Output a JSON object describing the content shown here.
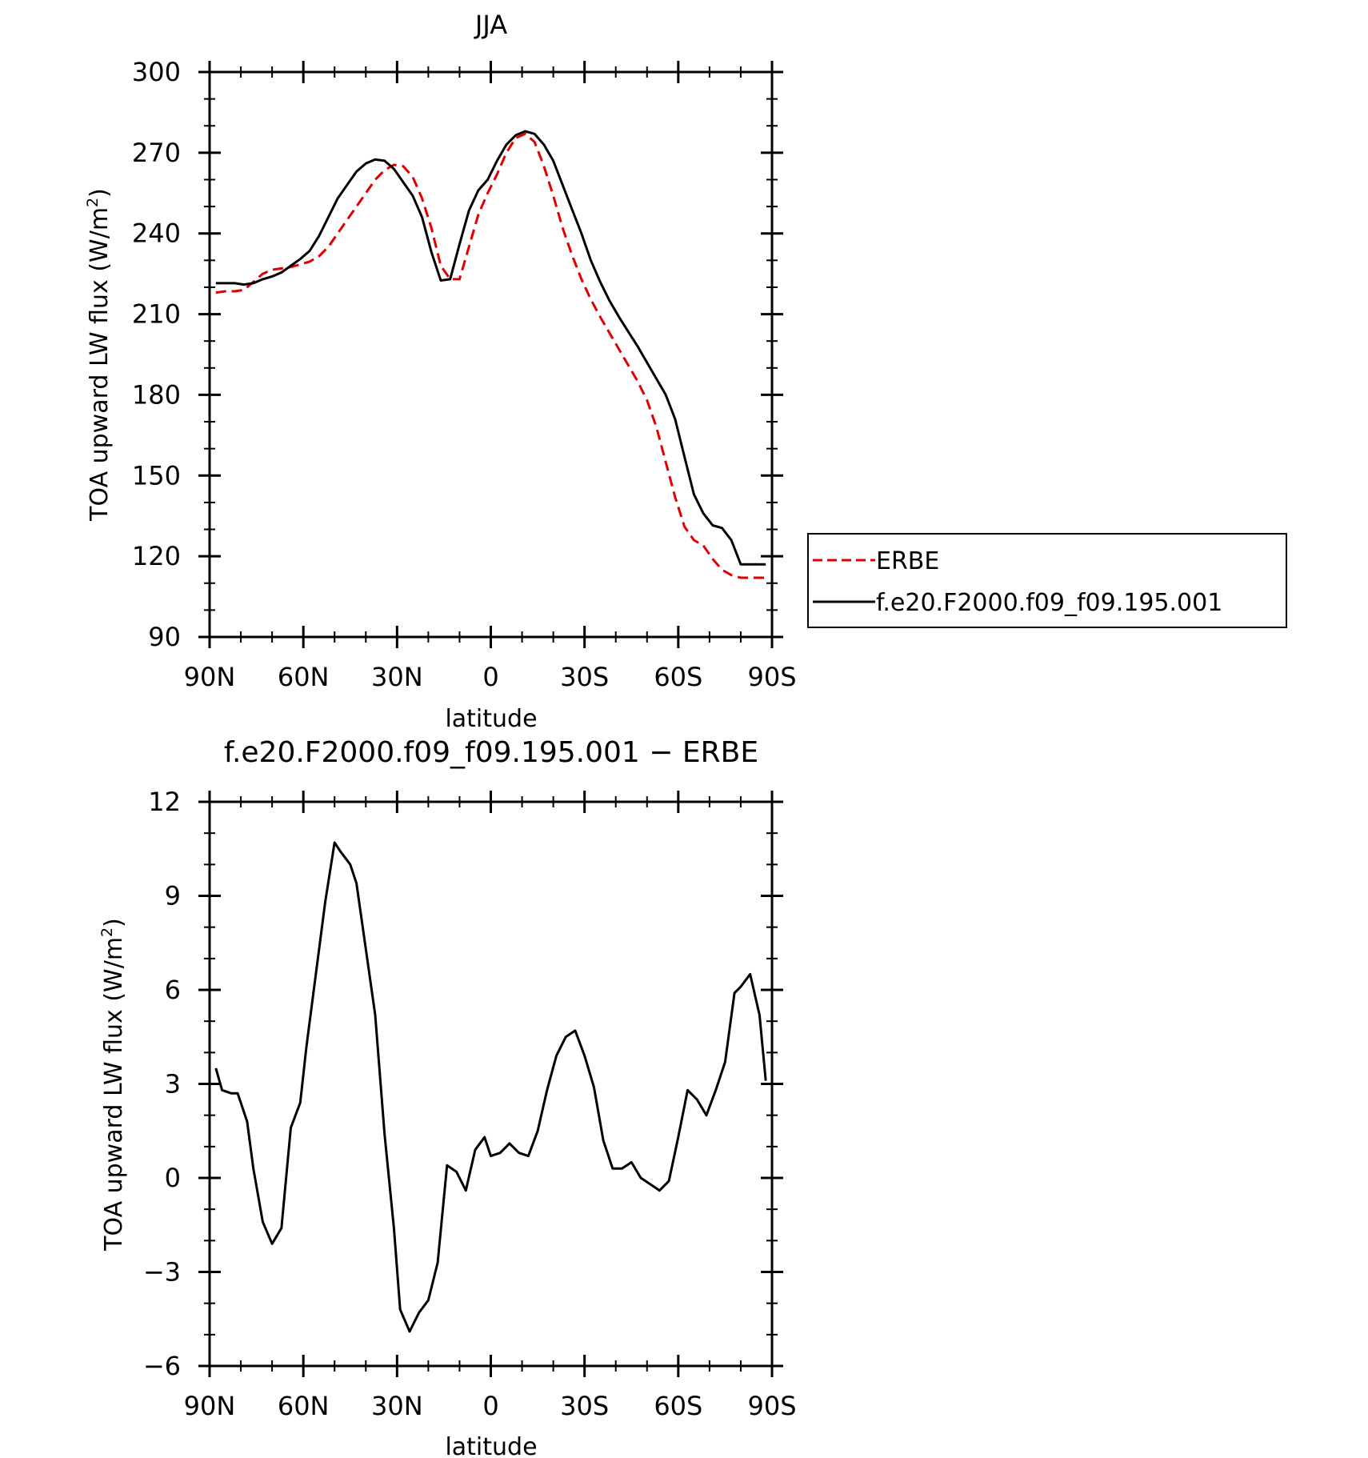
{
  "chart_data": [
    {
      "type": "line",
      "title": "JJA",
      "xlabel": "latitude",
      "ylabel": "TOA upward LW flux (W/m",
      "ylabel_sup": "2",
      "ylabel_close": ")",
      "xlim": [
        90,
        -90
      ],
      "ylim": [
        90,
        300
      ],
      "xticks": [
        90,
        60,
        30,
        0,
        -30,
        -60,
        -90
      ],
      "xtick_labels": [
        "90N",
        "60N",
        "30N",
        "0",
        "30S",
        "60S",
        "90S"
      ],
      "yticks": [
        90,
        120,
        150,
        180,
        210,
        240,
        270,
        300
      ],
      "ytick_labels": [
        "90",
        "120",
        "150",
        "180",
        "210",
        "240",
        "270",
        "300"
      ],
      "grid": false,
      "legend_position": "right",
      "series": [
        {
          "name": "ERBE",
          "color": "#e00000",
          "dash": "dashed",
          "x": [
            88,
            85,
            82,
            79,
            76,
            73,
            70,
            67,
            64,
            61,
            58,
            55,
            52,
            49,
            46,
            43,
            40,
            37,
            34,
            31,
            28,
            25,
            22,
            19,
            16,
            13,
            10,
            7,
            4,
            1,
            -2,
            -5,
            -8,
            -11,
            -14,
            -17,
            -20,
            -23,
            -26,
            -29,
            -32,
            -35,
            -38,
            -41,
            -44,
            -47,
            -50,
            -53,
            -56,
            -59,
            -62,
            -65,
            -68,
            -71,
            -74,
            -77,
            -80,
            -83,
            -86,
            -88
          ],
          "y": [
            218,
            218.5,
            218.5,
            219,
            222,
            225,
            226.5,
            227,
            227.5,
            228.5,
            229.5,
            231.5,
            235,
            240,
            245,
            250,
            255,
            260,
            263.5,
            265.5,
            265,
            261,
            253,
            242,
            228,
            223,
            223,
            235,
            247,
            255,
            262,
            270,
            275.5,
            277,
            274,
            265,
            254,
            242,
            232,
            223,
            215.5,
            209,
            203,
            197,
            191,
            185,
            178,
            168,
            155,
            142,
            131,
            126,
            124,
            119,
            115,
            113,
            112,
            112,
            112,
            112
          ]
        },
        {
          "name": "f.e20.F2000.f09_f09.195.001",
          "color": "#000000",
          "dash": "solid",
          "x": [
            88,
            85,
            82,
            79,
            76,
            73,
            70,
            67,
            64,
            61,
            58,
            55,
            52,
            49,
            46,
            43,
            40,
            37,
            34,
            31,
            28,
            25,
            22,
            19,
            16,
            13,
            10,
            7,
            4,
            1,
            -2,
            -5,
            -8,
            -11,
            -14,
            -17,
            -20,
            -23,
            -26,
            -29,
            -32,
            -35,
            -38,
            -41,
            -44,
            -47,
            -50,
            -53,
            -56,
            -59,
            -62,
            -65,
            -68,
            -71,
            -74,
            -77,
            -80,
            -83,
            -86,
            -88
          ],
          "y": [
            221.5,
            221.5,
            221.5,
            221,
            221.5,
            223,
            224,
            225.5,
            228,
            230.5,
            233.5,
            239,
            246,
            253,
            258,
            263,
            266,
            267.5,
            267,
            264,
            259,
            254,
            246,
            233,
            222.5,
            223,
            236,
            248.5,
            256,
            260,
            267,
            273,
            276.5,
            278,
            277,
            273,
            267,
            258,
            249,
            240,
            230,
            222,
            215,
            209,
            203.5,
            198,
            192,
            186,
            180,
            171,
            157,
            143,
            136,
            131.5,
            130.5,
            126,
            117,
            117,
            117,
            117
          ]
        }
      ]
    },
    {
      "type": "line",
      "title": "f.e20.F2000.f09_f09.195.001 − ERBE",
      "xlabel": "latitude",
      "ylabel": "TOA upward LW flux (W/m",
      "ylabel_sup": "2",
      "ylabel_close": ")",
      "xlim": [
        90,
        -90
      ],
      "ylim": [
        -6,
        12
      ],
      "xticks": [
        90,
        60,
        30,
        0,
        -30,
        -60,
        -90
      ],
      "xtick_labels": [
        "90N",
        "60N",
        "30N",
        "0",
        "30S",
        "60S",
        "90S"
      ],
      "yticks": [
        -6,
        -3,
        0,
        3,
        6,
        9,
        12
      ],
      "ytick_labels": [
        "−6",
        "−3",
        "0",
        "3",
        "6",
        "9",
        "12"
      ],
      "grid": false,
      "series": [
        {
          "color": "#000000",
          "dash": "solid",
          "x": [
            88,
            86,
            83,
            81,
            78,
            76,
            73,
            70,
            67,
            64,
            61,
            59,
            56,
            53,
            50,
            48,
            45,
            43,
            40,
            37,
            34,
            31,
            29,
            26,
            23,
            20,
            17,
            14,
            11,
            8,
            5,
            2,
            0,
            -3,
            -6,
            -9,
            -12,
            -15,
            -18,
            -21,
            -24,
            -27,
            -30,
            -33,
            -36,
            -39,
            -42,
            -45,
            -48,
            -51,
            -54,
            -57,
            -60,
            -63,
            -66,
            -69,
            -72,
            -75,
            -78,
            -80,
            -83,
            -86,
            -88
          ],
          "y": [
            3.5,
            2.8,
            2.7,
            2.7,
            1.8,
            0.3,
            -1.4,
            -2.1,
            -1.6,
            1.6,
            2.4,
            4.2,
            6.5,
            8.8,
            10.7,
            10.4,
            10,
            9.4,
            7.3,
            5.2,
            1.4,
            -1.6,
            -4.2,
            -4.9,
            -4.3,
            -3.9,
            -2.7,
            0.4,
            0.2,
            -0.4,
            0.9,
            1.3,
            0.7,
            0.8,
            1.1,
            0.8,
            0.7,
            1.5,
            2.8,
            3.9,
            4.5,
            4.7,
            3.9,
            2.9,
            1.2,
            0.3,
            0.3,
            0.5,
            0,
            -0.2,
            -0.4,
            -0.1,
            1.3,
            2.8,
            2.5,
            2,
            2.8,
            3.7,
            5.9,
            6.1,
            6.5,
            5.2,
            3.1
          ]
        }
      ]
    }
  ]
}
